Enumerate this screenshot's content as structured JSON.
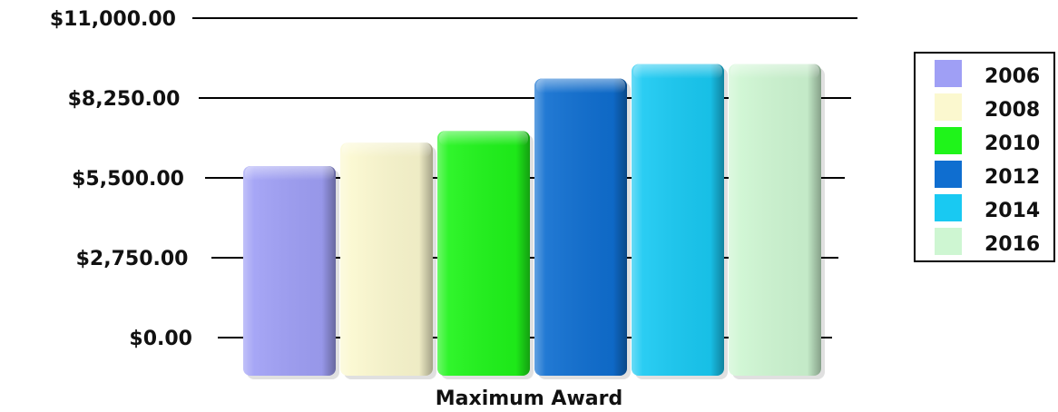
{
  "chart_data": {
    "type": "bar",
    "title": "",
    "xlabel": "Maximum Award",
    "ylabel": "",
    "categories": [
      "Maximum Award"
    ],
    "series": [
      {
        "name": "2006",
        "values": [
          7200
        ],
        "color": "#9f9ff5"
      },
      {
        "name": "2008",
        "values": [
          8000
        ],
        "color": "#fbf8cf"
      },
      {
        "name": "2010",
        "values": [
          8400
        ],
        "color": "#1ff41a"
      },
      {
        "name": "2012",
        "values": [
          10200
        ],
        "color": "#0f6ed0"
      },
      {
        "name": "2014",
        "values": [
          10700
        ],
        "color": "#19c9f2"
      },
      {
        "name": "2016",
        "values": [
          10700
        ],
        "color": "#cef6d2"
      }
    ],
    "ylim": [
      0,
      11000
    ],
    "yticks": [
      0,
      2750,
      5500,
      8250,
      11000
    ],
    "ytick_labels": [
      "$0.00",
      "$2,750.00",
      "$5,500.00",
      "$8,250.00",
      "$11,000.00"
    ],
    "grid": true,
    "legend": "right"
  }
}
